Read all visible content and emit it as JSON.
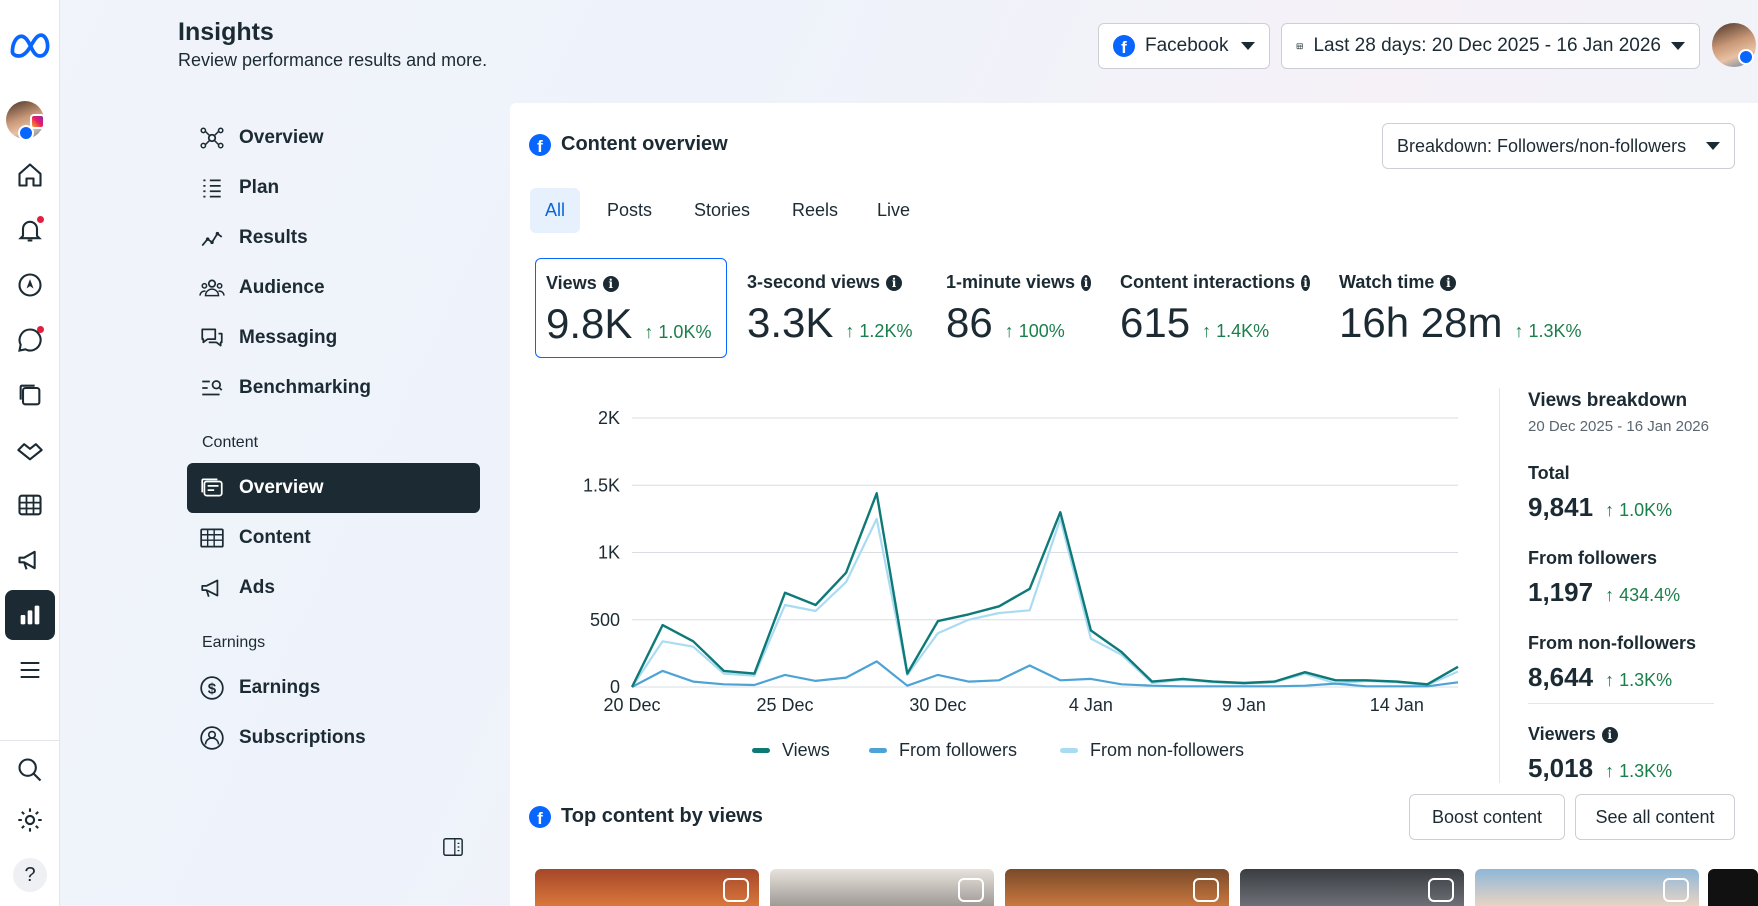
{
  "header": {
    "title": "Insights",
    "subtitle": "Review performance results and more."
  },
  "top": {
    "platform": "Facebook",
    "date_range": "Last 28 days: 20 Dec 2025 - 16 Jan 2026"
  },
  "nav": {
    "items": [
      "Overview",
      "Plan",
      "Results",
      "Audience",
      "Messaging",
      "Benchmarking"
    ],
    "content_section": "Content",
    "content_items": [
      "Overview",
      "Content",
      "Ads"
    ],
    "earnings_section": "Earnings",
    "earnings_items": [
      "Earnings",
      "Subscriptions"
    ]
  },
  "content_overview": {
    "title": "Content overview",
    "breakdown": "Breakdown: Followers/non-followers",
    "tabs": [
      "All",
      "Posts",
      "Stories",
      "Reels",
      "Live"
    ],
    "metrics": [
      {
        "label": "Views",
        "value": "9.8K",
        "change": "1.0K%"
      },
      {
        "label": "3-second views",
        "value": "3.3K",
        "change": "1.2K%"
      },
      {
        "label": "1-minute views",
        "value": "86",
        "change": "100%"
      },
      {
        "label": "Content interactions",
        "value": "615",
        "change": "1.4K%"
      },
      {
        "label": "Watch time",
        "value": "16h 28m",
        "change": "1.3K%"
      }
    ]
  },
  "breakdown": {
    "title": "Views breakdown",
    "range": "20 Dec 2025 - 16 Jan 2026",
    "total_label": "Total",
    "total": "9,841",
    "total_change": "1.0K%",
    "followers_label": "From followers",
    "followers": "1,197",
    "followers_change": "434.4%",
    "nonfollowers_label": "From non-followers",
    "nonfollowers": "8,644",
    "nonfollowers_change": "1.3K%",
    "viewers_label": "Viewers",
    "viewers": "5,018",
    "viewers_change": "1.3K%"
  },
  "top_content": {
    "title": "Top content by views",
    "boost": "Boost content",
    "see_all": "See all content"
  },
  "colors": {
    "views": "#0e7a78",
    "followers": "#4ea3d6",
    "nonfollowers": "#a9dcf2",
    "accent": "#0866ff",
    "positive": "#1a7f4b"
  },
  "chart_data": {
    "type": "line",
    "x": [
      "20 Dec",
      "21 Dec",
      "22 Dec",
      "23 Dec",
      "24 Dec",
      "25 Dec",
      "26 Dec",
      "27 Dec",
      "28 Dec",
      "29 Dec",
      "30 Dec",
      "31 Dec",
      "1 Jan",
      "2 Jan",
      "3 Jan",
      "4 Jan",
      "5 Jan",
      "6 Jan",
      "7 Jan",
      "8 Jan",
      "9 Jan",
      "10 Jan",
      "11 Jan",
      "12 Jan",
      "13 Jan",
      "14 Jan",
      "15 Jan",
      "16 Jan"
    ],
    "xticks": [
      "20 Dec",
      "25 Dec",
      "30 Dec",
      "4 Jan",
      "9 Jan",
      "14 Jan"
    ],
    "yticks": [
      0,
      500,
      1000,
      1500,
      2000
    ],
    "ytick_labels": [
      "0",
      "500",
      "1K",
      "1.5K",
      "2K"
    ],
    "ylim": [
      0,
      2000
    ],
    "grid": true,
    "legend": "bottom",
    "series": [
      {
        "name": "Views",
        "values": [
          0,
          460,
          340,
          120,
          100,
          700,
          610,
          850,
          1440,
          100,
          490,
          540,
          600,
          730,
          1300,
          420,
          260,
          40,
          60,
          40,
          30,
          40,
          110,
          50,
          50,
          40,
          20,
          150
        ]
      },
      {
        "name": "From followers",
        "values": [
          0,
          120,
          40,
          20,
          15,
          90,
          45,
          70,
          190,
          10,
          90,
          40,
          50,
          160,
          50,
          60,
          20,
          10,
          5,
          5,
          5,
          5,
          10,
          25,
          5,
          5,
          5,
          35
        ]
      },
      {
        "name": "From non-followers",
        "values": [
          0,
          340,
          300,
          100,
          85,
          610,
          565,
          780,
          1250,
          90,
          400,
          500,
          550,
          570,
          1250,
          360,
          240,
          30,
          55,
          35,
          25,
          35,
          100,
          25,
          45,
          35,
          15,
          115
        ]
      }
    ]
  }
}
